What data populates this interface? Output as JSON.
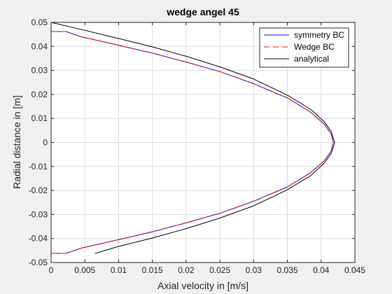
{
  "chart_data": {
    "type": "line",
    "title": "wedge angel 45",
    "xlabel": "Axial velocity in [m/s]",
    "ylabel": "Radial distance in [m]",
    "xlim": [
      0,
      0.045
    ],
    "ylim": [
      -0.05,
      0.05
    ],
    "x_ticks": [
      "0",
      "0.005",
      "0.01",
      "0.015",
      "0.02",
      "0.025",
      "0.03",
      "0.035",
      "0.04",
      "0.045"
    ],
    "y_ticks": [
      "-0.05",
      "-0.04",
      "-0.03",
      "-0.02",
      "-0.01",
      "0",
      "0.01",
      "0.02",
      "0.03",
      "0.04",
      "0.05"
    ],
    "grid": true,
    "legend_position": "top-right",
    "series": [
      {
        "name": "symmetry BC",
        "color": "#0000ff",
        "style": "solid",
        "points": [
          [
            0,
            -0.0462
          ],
          [
            0.0022,
            -0.0462
          ],
          [
            0.0045,
            -0.044
          ],
          [
            0.01,
            -0.0405
          ],
          [
            0.015,
            -0.0372
          ],
          [
            0.02,
            -0.0335
          ],
          [
            0.025,
            -0.0295
          ],
          [
            0.03,
            -0.0245
          ],
          [
            0.035,
            -0.0185
          ],
          [
            0.0385,
            -0.0125
          ],
          [
            0.0405,
            -0.0075
          ],
          [
            0.0415,
            -0.0035
          ],
          [
            0.0418,
            0
          ],
          [
            0.0415,
            0.0035
          ],
          [
            0.0405,
            0.0075
          ],
          [
            0.0385,
            0.0125
          ],
          [
            0.035,
            0.0185
          ],
          [
            0.03,
            0.0245
          ],
          [
            0.025,
            0.0295
          ],
          [
            0.02,
            0.0335
          ],
          [
            0.015,
            0.0372
          ],
          [
            0.01,
            0.0405
          ],
          [
            0.0045,
            0.044
          ],
          [
            0.0022,
            0.0462
          ],
          [
            0,
            0.0462
          ]
        ]
      },
      {
        "name": "Wedge BC",
        "color": "#ff0000",
        "style": "dashed",
        "points": [
          [
            0,
            -0.0462
          ],
          [
            0.0022,
            -0.0462
          ],
          [
            0.0045,
            -0.044
          ],
          [
            0.01,
            -0.0405
          ],
          [
            0.015,
            -0.0372
          ],
          [
            0.02,
            -0.0335
          ],
          [
            0.025,
            -0.0295
          ],
          [
            0.03,
            -0.0245
          ],
          [
            0.035,
            -0.0185
          ],
          [
            0.0385,
            -0.0125
          ],
          [
            0.0405,
            -0.0075
          ],
          [
            0.0415,
            -0.0035
          ],
          [
            0.0418,
            0
          ],
          [
            0.0415,
            0.0035
          ],
          [
            0.0405,
            0.0075
          ],
          [
            0.0385,
            0.0125
          ],
          [
            0.035,
            0.0185
          ],
          [
            0.03,
            0.0245
          ],
          [
            0.025,
            0.0295
          ],
          [
            0.02,
            0.0335
          ],
          [
            0.015,
            0.0372
          ],
          [
            0.01,
            0.0405
          ],
          [
            0.0045,
            0.044
          ],
          [
            0.0022,
            0.0462
          ],
          [
            0,
            0.0462
          ]
        ]
      },
      {
        "name": "analytical",
        "color": "#000000",
        "style": "solid",
        "points": [
          [
            0.0065,
            -0.0462
          ],
          [
            0.01,
            -0.0433
          ],
          [
            0.015,
            -0.0398
          ],
          [
            0.02,
            -0.0359
          ],
          [
            0.025,
            -0.0315
          ],
          [
            0.03,
            -0.0264
          ],
          [
            0.035,
            -0.0197
          ],
          [
            0.0385,
            -0.0137
          ],
          [
            0.0405,
            -0.0085
          ],
          [
            0.0415,
            -0.0045
          ],
          [
            0.042,
            0
          ],
          [
            0.0415,
            0.0045
          ],
          [
            0.0405,
            0.0085
          ],
          [
            0.0385,
            0.0137
          ],
          [
            0.035,
            0.0197
          ],
          [
            0.03,
            0.0264
          ],
          [
            0.025,
            0.0315
          ],
          [
            0.02,
            0.0359
          ],
          [
            0.015,
            0.0398
          ],
          [
            0.01,
            0.0433
          ],
          [
            0.005,
            0.0467
          ],
          [
            0,
            0.05
          ]
        ]
      }
    ]
  }
}
